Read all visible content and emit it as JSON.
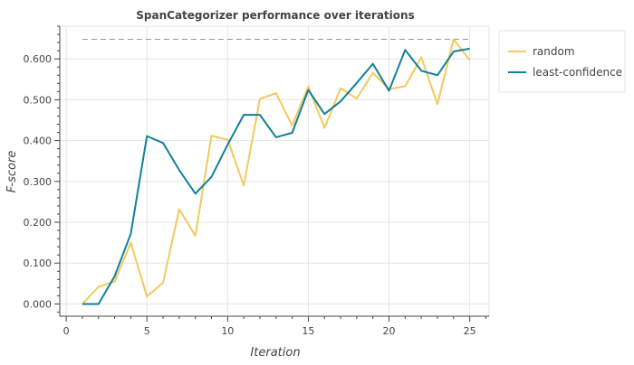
{
  "chart_data": {
    "type": "line",
    "title": "SpanCategorizer performance over iterations",
    "xlabel": "Iteration",
    "ylabel": "F-score",
    "xlim": [
      -0.4,
      26.2
    ],
    "ylim": [
      -0.03,
      0.68
    ],
    "x_ticks": [
      0,
      5,
      10,
      15,
      20,
      25
    ],
    "y_ticks": [
      0.0,
      0.1,
      0.2,
      0.3,
      0.4,
      0.5,
      0.6
    ],
    "y_tick_labels": [
      "0.000",
      "0.100",
      "0.200",
      "0.300",
      "0.400",
      "0.500",
      "0.600"
    ],
    "grid": true,
    "legend_position": "right",
    "reference_line": {
      "y": 0.648,
      "x_range": [
        1,
        25
      ],
      "style": "dashed",
      "color": "#999999"
    },
    "x": [
      1,
      2,
      3,
      4,
      5,
      6,
      7,
      8,
      9,
      10,
      11,
      12,
      13,
      14,
      15,
      16,
      17,
      18,
      19,
      20,
      21,
      22,
      23,
      24,
      25
    ],
    "series": [
      {
        "name": "random",
        "color": "#f4c95d",
        "values": [
          0.0,
          0.042,
          0.055,
          0.15,
          0.018,
          0.052,
          0.232,
          0.167,
          0.412,
          0.402,
          0.29,
          0.502,
          0.516,
          0.437,
          0.532,
          0.431,
          0.528,
          0.503,
          0.566,
          0.526,
          0.533,
          0.604,
          0.489,
          0.648,
          0.597
        ]
      },
      {
        "name": "least-confidence",
        "color": "#11809b",
        "values": [
          0.0,
          0.0,
          0.068,
          0.172,
          0.411,
          0.394,
          0.328,
          0.27,
          0.311,
          0.39,
          0.463,
          0.463,
          0.408,
          0.419,
          0.524,
          0.465,
          0.496,
          0.541,
          0.588,
          0.522,
          0.622,
          0.571,
          0.56,
          0.618,
          0.625
        ]
      }
    ]
  }
}
